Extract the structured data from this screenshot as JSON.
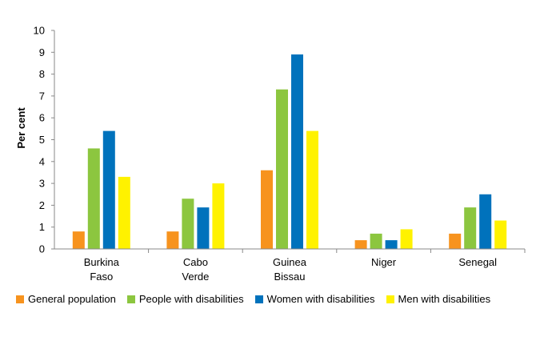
{
  "chart_data": {
    "type": "bar",
    "title": "",
    "xlabel": "",
    "ylabel": "Per cent",
    "ylim": [
      0,
      10
    ],
    "yticks": [
      "0",
      "1",
      "2",
      "3",
      "4",
      "5",
      "6",
      "7",
      "8",
      "9",
      "10"
    ],
    "grid": false,
    "legend_position": "bottom",
    "categories": [
      {
        "line1": "Burkina",
        "line2": "Faso"
      },
      {
        "line1": "Cabo",
        "line2": "Verde"
      },
      {
        "line1": "Guinea",
        "line2": "Bissau"
      },
      {
        "line1": "Niger",
        "line2": ""
      },
      {
        "line1": "Senegal",
        "line2": ""
      }
    ],
    "series": [
      {
        "name": "General population",
        "color": "#f7931e",
        "values": [
          0.8,
          0.8,
          3.6,
          0.4,
          0.7
        ]
      },
      {
        "name": "People with disabilities",
        "color": "#8cc63f",
        "values": [
          4.6,
          2.3,
          7.3,
          0.7,
          1.9
        ]
      },
      {
        "name": "Women with disabilities",
        "color": "#0072bc",
        "values": [
          5.4,
          1.9,
          8.9,
          0.4,
          2.5
        ]
      },
      {
        "name": "Men with disabilities",
        "color": "#fff200",
        "values": [
          3.3,
          3.0,
          5.4,
          0.9,
          1.3
        ]
      }
    ]
  }
}
